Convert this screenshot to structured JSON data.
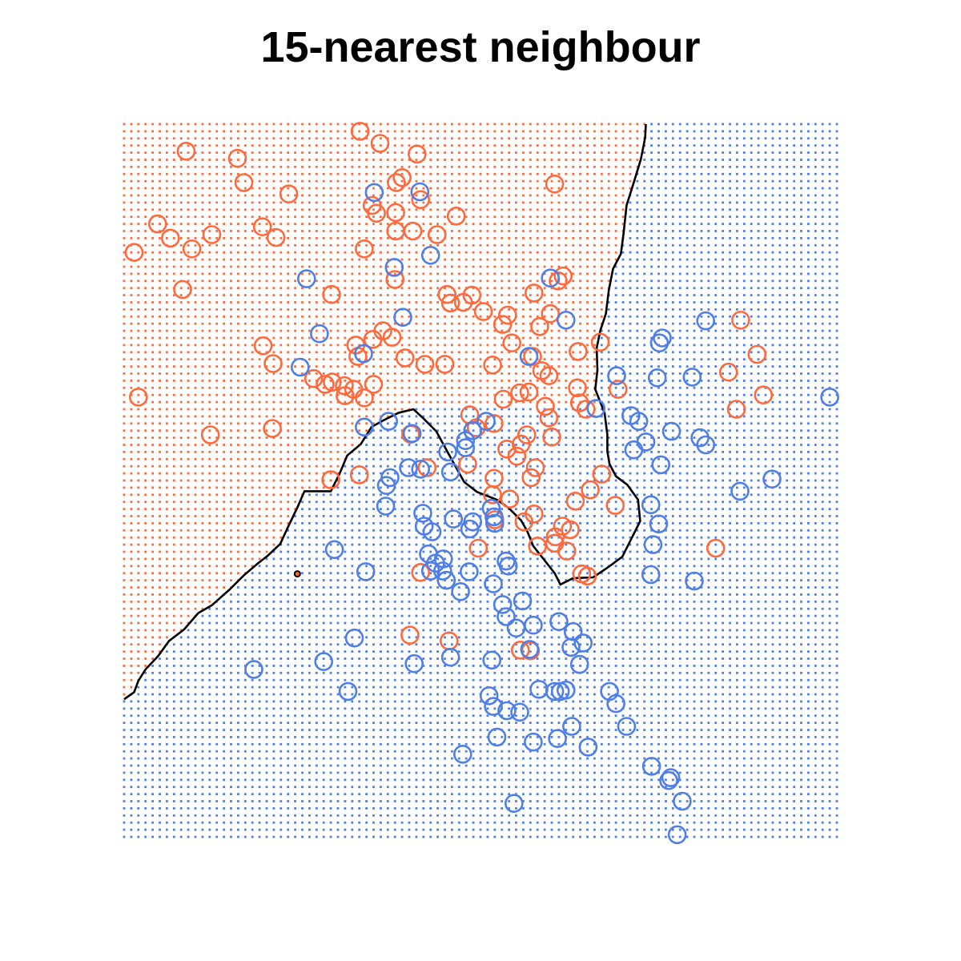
{
  "chart_data": {
    "type": "scatter",
    "title": "15-nearest neighbour",
    "xlabel": "",
    "ylabel": "",
    "xlim": [
      0,
      100
    ],
    "ylim": [
      0,
      100
    ],
    "axes_visible": false,
    "grid": false,
    "legend": "none",
    "colors": {
      "class_orange": "#FF6A3D",
      "class_blue": "#4F7FE6",
      "boundary": "#000000"
    },
    "background_grid": {
      "description": "dotted lattice of predicted class at each grid point",
      "x_range": [
        0,
        100
      ],
      "y_range": [
        0,
        100
      ],
      "steps": 100
    },
    "decision_boundary": [
      [
        0,
        19.3
      ],
      [
        1.4,
        20.3
      ],
      [
        2.0,
        21.9
      ],
      [
        3.0,
        23.5
      ],
      [
        4.8,
        25.4
      ],
      [
        6.3,
        27.5
      ],
      [
        8.4,
        29.1
      ],
      [
        10.4,
        31.4
      ],
      [
        12.3,
        32.5
      ],
      [
        14.9,
        34.8
      ],
      [
        16.8,
        36.7
      ],
      [
        18.8,
        38.4
      ],
      [
        20.1,
        39.4
      ],
      [
        21.9,
        41.1
      ],
      [
        23.0,
        43.5
      ],
      [
        24.3,
        46.2
      ],
      [
        25.3,
        48.5
      ],
      [
        29.0,
        48.5
      ],
      [
        30.2,
        50.9
      ],
      [
        31.3,
        53.5
      ],
      [
        33.2,
        55.1
      ],
      [
        34.7,
        57.5
      ],
      [
        36.3,
        58.4
      ],
      [
        38.5,
        59.5
      ],
      [
        40.6,
        60.0
      ],
      [
        42.0,
        58.7
      ],
      [
        43.8,
        56.9
      ],
      [
        45.6,
        53.6
      ],
      [
        47.7,
        49.8
      ],
      [
        49.5,
        48.4
      ],
      [
        52.3,
        47.3
      ],
      [
        54.0,
        46.1
      ],
      [
        55.7,
        44.4
      ],
      [
        56.6,
        42.8
      ],
      [
        57.4,
        40.8
      ],
      [
        60.4,
        37.0
      ],
      [
        61.2,
        35.4
      ],
      [
        63.0,
        36.3
      ],
      [
        65.8,
        36.4
      ],
      [
        68.0,
        37.9
      ],
      [
        69.9,
        39.3
      ],
      [
        71.2,
        41.9
      ],
      [
        72.4,
        44.3
      ],
      [
        72.1,
        47.3
      ],
      [
        70.6,
        49.4
      ],
      [
        69.0,
        50.6
      ],
      [
        68.1,
        52.3
      ],
      [
        67.8,
        54.1
      ],
      [
        67.8,
        56.4
      ],
      [
        67.4,
        59.5
      ],
      [
        66.1,
        62.8
      ],
      [
        66.4,
        65.5
      ],
      [
        66.3,
        68.6
      ],
      [
        66.8,
        71.0
      ],
      [
        67.6,
        73.4
      ],
      [
        68.0,
        76.7
      ],
      [
        68.6,
        79.7
      ],
      [
        69.7,
        81.8
      ],
      [
        70.1,
        84.9
      ],
      [
        70.5,
        88.6
      ],
      [
        71.6,
        92.1
      ],
      [
        72.5,
        95.1
      ],
      [
        73.1,
        98.1
      ],
      [
        73.2,
        100
      ]
    ],
    "boundary_island": [
      24.3,
      36.9
    ],
    "series": [
      {
        "name": "",
        "color": "#FF6A3D",
        "marker": "circle-open",
        "points": [
          [
            8.7,
            96.2
          ],
          [
            15.9,
            95.2
          ],
          [
            33.1,
            99.0
          ],
          [
            35.9,
            97.3
          ],
          [
            41.1,
            95.8
          ],
          [
            16.8,
            91.8
          ],
          [
            23.1,
            90.2
          ],
          [
            38.2,
            91.8
          ],
          [
            39.0,
            92.5
          ],
          [
            34.8,
            88.6
          ],
          [
            41.6,
            89.4
          ],
          [
            60.4,
            91.6
          ],
          [
            4.7,
            86.0
          ],
          [
            6.5,
            84.0
          ],
          [
            9.5,
            82.5
          ],
          [
            12.3,
            84.5
          ],
          [
            19.4,
            85.6
          ],
          [
            21.3,
            84.1
          ],
          [
            35.4,
            87.5
          ],
          [
            38.1,
            87.6
          ],
          [
            40.5,
            85.0
          ],
          [
            46.6,
            87.1
          ],
          [
            43.9,
            84.5
          ],
          [
            38.1,
            85.0
          ],
          [
            33.7,
            82.5
          ],
          [
            1.4,
            82.0
          ],
          [
            8.2,
            76.8
          ],
          [
            38.0,
            78.2
          ],
          [
            48.8,
            76.0
          ],
          [
            60.9,
            78.0
          ],
          [
            29.1,
            76.1
          ],
          [
            57.5,
            76.3
          ],
          [
            61.6,
            78.7
          ],
          [
            45.3,
            76.1
          ],
          [
            45.8,
            74.9
          ],
          [
            50.4,
            73.7
          ],
          [
            53.8,
            73.2
          ],
          [
            36.3,
            71.0
          ],
          [
            32.5,
            69.0
          ],
          [
            34.9,
            69.8
          ],
          [
            37.6,
            70.1
          ],
          [
            59.8,
            73.4
          ],
          [
            47.6,
            75.0
          ],
          [
            53.1,
            71.9
          ],
          [
            63.7,
            68.1
          ],
          [
            19.5,
            68.9
          ],
          [
            32.8,
            67.4
          ],
          [
            20.9,
            66.4
          ],
          [
            39.4,
            67.2
          ],
          [
            42.2,
            66.3
          ],
          [
            45.0,
            66.3
          ],
          [
            51.7,
            66.2
          ],
          [
            58.6,
            65.4
          ],
          [
            59.6,
            64.7
          ],
          [
            26.6,
            64.3
          ],
          [
            28.2,
            63.5
          ],
          [
            29.2,
            63.8
          ],
          [
            30.9,
            63.3
          ],
          [
            35.0,
            63.5
          ],
          [
            31.0,
            61.9
          ],
          [
            32.2,
            62.8
          ],
          [
            33.7,
            61.6
          ],
          [
            2.0,
            61.7
          ],
          [
            53.2,
            61.4
          ],
          [
            55.5,
            62.3
          ],
          [
            56.8,
            62.4
          ],
          [
            59.1,
            60.4
          ],
          [
            59.6,
            58.8
          ],
          [
            20.8,
            57.3
          ],
          [
            12.1,
            56.4
          ],
          [
            40.2,
            56.5
          ],
          [
            48.5,
            59.2
          ],
          [
            49.4,
            57.4
          ],
          [
            51.9,
            58.0
          ],
          [
            56.5,
            56.4
          ],
          [
            60.0,
            56.1
          ],
          [
            55.7,
            55.1
          ],
          [
            53.7,
            54.4
          ],
          [
            48.2,
            52.3
          ],
          [
            55.1,
            53.4
          ],
          [
            57.7,
            51.8
          ],
          [
            57.1,
            50.4
          ],
          [
            42.5,
            51.8
          ],
          [
            33.0,
            50.8
          ],
          [
            29.0,
            50.1
          ],
          [
            51.9,
            50.3
          ],
          [
            51.7,
            48.0
          ],
          [
            54.1,
            47.4
          ],
          [
            65.4,
            48.7
          ],
          [
            63.6,
            63.0
          ],
          [
            85.9,
            60.0
          ],
          [
            88.8,
            67.7
          ],
          [
            86.5,
            72.5
          ],
          [
            89.7,
            62.0
          ],
          [
            84.8,
            65.2
          ],
          [
            58.0,
            40.8
          ],
          [
            60.5,
            42.1
          ],
          [
            61.5,
            43.6
          ],
          [
            62.1,
            40.1
          ],
          [
            60.4,
            41.2
          ],
          [
            62.6,
            43.1
          ],
          [
            64.2,
            36.9
          ],
          [
            65.0,
            36.6
          ],
          [
            52.0,
            44.5
          ],
          [
            57.5,
            45.3
          ],
          [
            56.1,
            44.2
          ],
          [
            49.7,
            40.5
          ],
          [
            41.6,
            37.1
          ],
          [
            63.3,
            47.1
          ],
          [
            67.0,
            50.9
          ],
          [
            68.9,
            46.5
          ],
          [
            69.3,
            62.8
          ],
          [
            83.0,
            40.5
          ],
          [
            40.1,
            28.3
          ],
          [
            45.6,
            27.5
          ],
          [
            55.6,
            26.2
          ],
          [
            57.0,
            26.1
          ],
          [
            64.8,
            60.0
          ],
          [
            63.9,
            60.9
          ],
          [
            66.8,
            69.4
          ],
          [
            58.3,
            71.6
          ],
          [
            57.3,
            67.4
          ],
          [
            54.4,
            69.3
          ]
        ]
      },
      {
        "name": "",
        "color": "#4F7FE6",
        "marker": "circle-open",
        "points": [
          [
            35.1,
            90.4
          ],
          [
            41.5,
            90.5
          ],
          [
            43.0,
            81.6
          ],
          [
            25.6,
            78.3
          ],
          [
            37.9,
            79.9
          ],
          [
            59.8,
            78.4
          ],
          [
            39.1,
            72.9
          ],
          [
            62.0,
            72.5
          ],
          [
            27.4,
            70.6
          ],
          [
            33.6,
            67.8
          ],
          [
            56.8,
            67.4
          ],
          [
            24.7,
            65.9
          ],
          [
            81.6,
            72.4
          ],
          [
            75.5,
            70.0
          ],
          [
            75.1,
            69.3
          ],
          [
            69.1,
            64.7
          ],
          [
            74.8,
            64.4
          ],
          [
            79.7,
            64.5
          ],
          [
            99.0,
            61.7
          ],
          [
            66.2,
            60.1
          ],
          [
            71.1,
            59.1
          ],
          [
            72.2,
            58.3
          ],
          [
            73.2,
            55.4
          ],
          [
            76.8,
            56.9
          ],
          [
            71.5,
            54.3
          ],
          [
            80.8,
            56.0
          ],
          [
            81.6,
            55.0
          ],
          [
            33.7,
            57.5
          ],
          [
            37.1,
            58.3
          ],
          [
            40.4,
            56.6
          ],
          [
            48.9,
            57.0
          ],
          [
            47.9,
            55.6
          ],
          [
            47.9,
            54.6
          ],
          [
            50.8,
            58.3
          ],
          [
            45.4,
            54.0
          ],
          [
            39.9,
            51.8
          ],
          [
            37.3,
            50.4
          ],
          [
            36.8,
            49.3
          ],
          [
            36.7,
            46.4
          ],
          [
            41.6,
            51.6
          ],
          [
            45.8,
            51.2
          ],
          [
            90.9,
            50.2
          ],
          [
            73.9,
            46.6
          ],
          [
            75.0,
            43.9
          ],
          [
            51.5,
            46.1
          ],
          [
            52.0,
            44.0
          ],
          [
            41.9,
            45.4
          ],
          [
            42.1,
            43.6
          ],
          [
            43.2,
            42.8
          ],
          [
            46.2,
            44.6
          ],
          [
            29.5,
            40.3
          ],
          [
            33.9,
            37.2
          ],
          [
            42.7,
            39.7
          ],
          [
            44.8,
            39.0
          ],
          [
            43.0,
            37.3
          ],
          [
            44.7,
            37.3
          ],
          [
            45.2,
            36.0
          ],
          [
            48.4,
            37.2
          ],
          [
            53.6,
            38.7
          ],
          [
            51.8,
            35.5
          ],
          [
            53.1,
            32.6
          ],
          [
            53.6,
            30.9
          ],
          [
            55.9,
            33.1
          ],
          [
            57.4,
            29.7
          ],
          [
            61.0,
            30.2
          ],
          [
            63.0,
            28.8
          ],
          [
            64.4,
            27.2
          ],
          [
            63.9,
            24.2
          ],
          [
            62.7,
            26.6
          ],
          [
            32.3,
            27.9
          ],
          [
            28.0,
            24.6
          ],
          [
            40.7,
            24.3
          ],
          [
            45.8,
            25.2
          ],
          [
            51.6,
            24.8
          ],
          [
            18.2,
            23.5
          ],
          [
            31.4,
            20.4
          ],
          [
            51.2,
            19.8
          ],
          [
            60.4,
            20.4
          ],
          [
            61.2,
            20.4
          ],
          [
            68.1,
            20.4
          ],
          [
            69.0,
            18.7
          ],
          [
            51.8,
            18.3
          ],
          [
            53.7,
            17.7
          ],
          [
            55.5,
            17.5
          ],
          [
            62.8,
            15.5
          ],
          [
            70.5,
            15.5
          ],
          [
            52.3,
            14.0
          ],
          [
            57.4,
            13.3
          ],
          [
            60.8,
            13.8
          ],
          [
            65.1,
            12.6
          ],
          [
            47.5,
            11.6
          ],
          [
            74.0,
            9.9
          ],
          [
            76.7,
            8.3
          ],
          [
            76.4,
            7.9
          ],
          [
            78.3,
            5.0
          ],
          [
            54.7,
            4.7
          ],
          [
            77.6,
            0.3
          ],
          [
            62.0,
            20.6
          ],
          [
            47.2,
            34.4
          ],
          [
            48.9,
            44.2
          ],
          [
            73.9,
            36.8
          ],
          [
            74.2,
            41.0
          ],
          [
            80.0,
            35.9
          ],
          [
            86.4,
            48.5
          ],
          [
            75.3,
            52.2
          ],
          [
            55.0,
            29.3
          ],
          [
            56.9,
            26.3
          ],
          [
            58.2,
            20.7
          ],
          [
            43.7,
            38.4
          ],
          [
            48.5,
            43.2
          ],
          [
            51.9,
            44.9
          ],
          [
            53.9,
            38.0
          ]
        ]
      }
    ]
  }
}
